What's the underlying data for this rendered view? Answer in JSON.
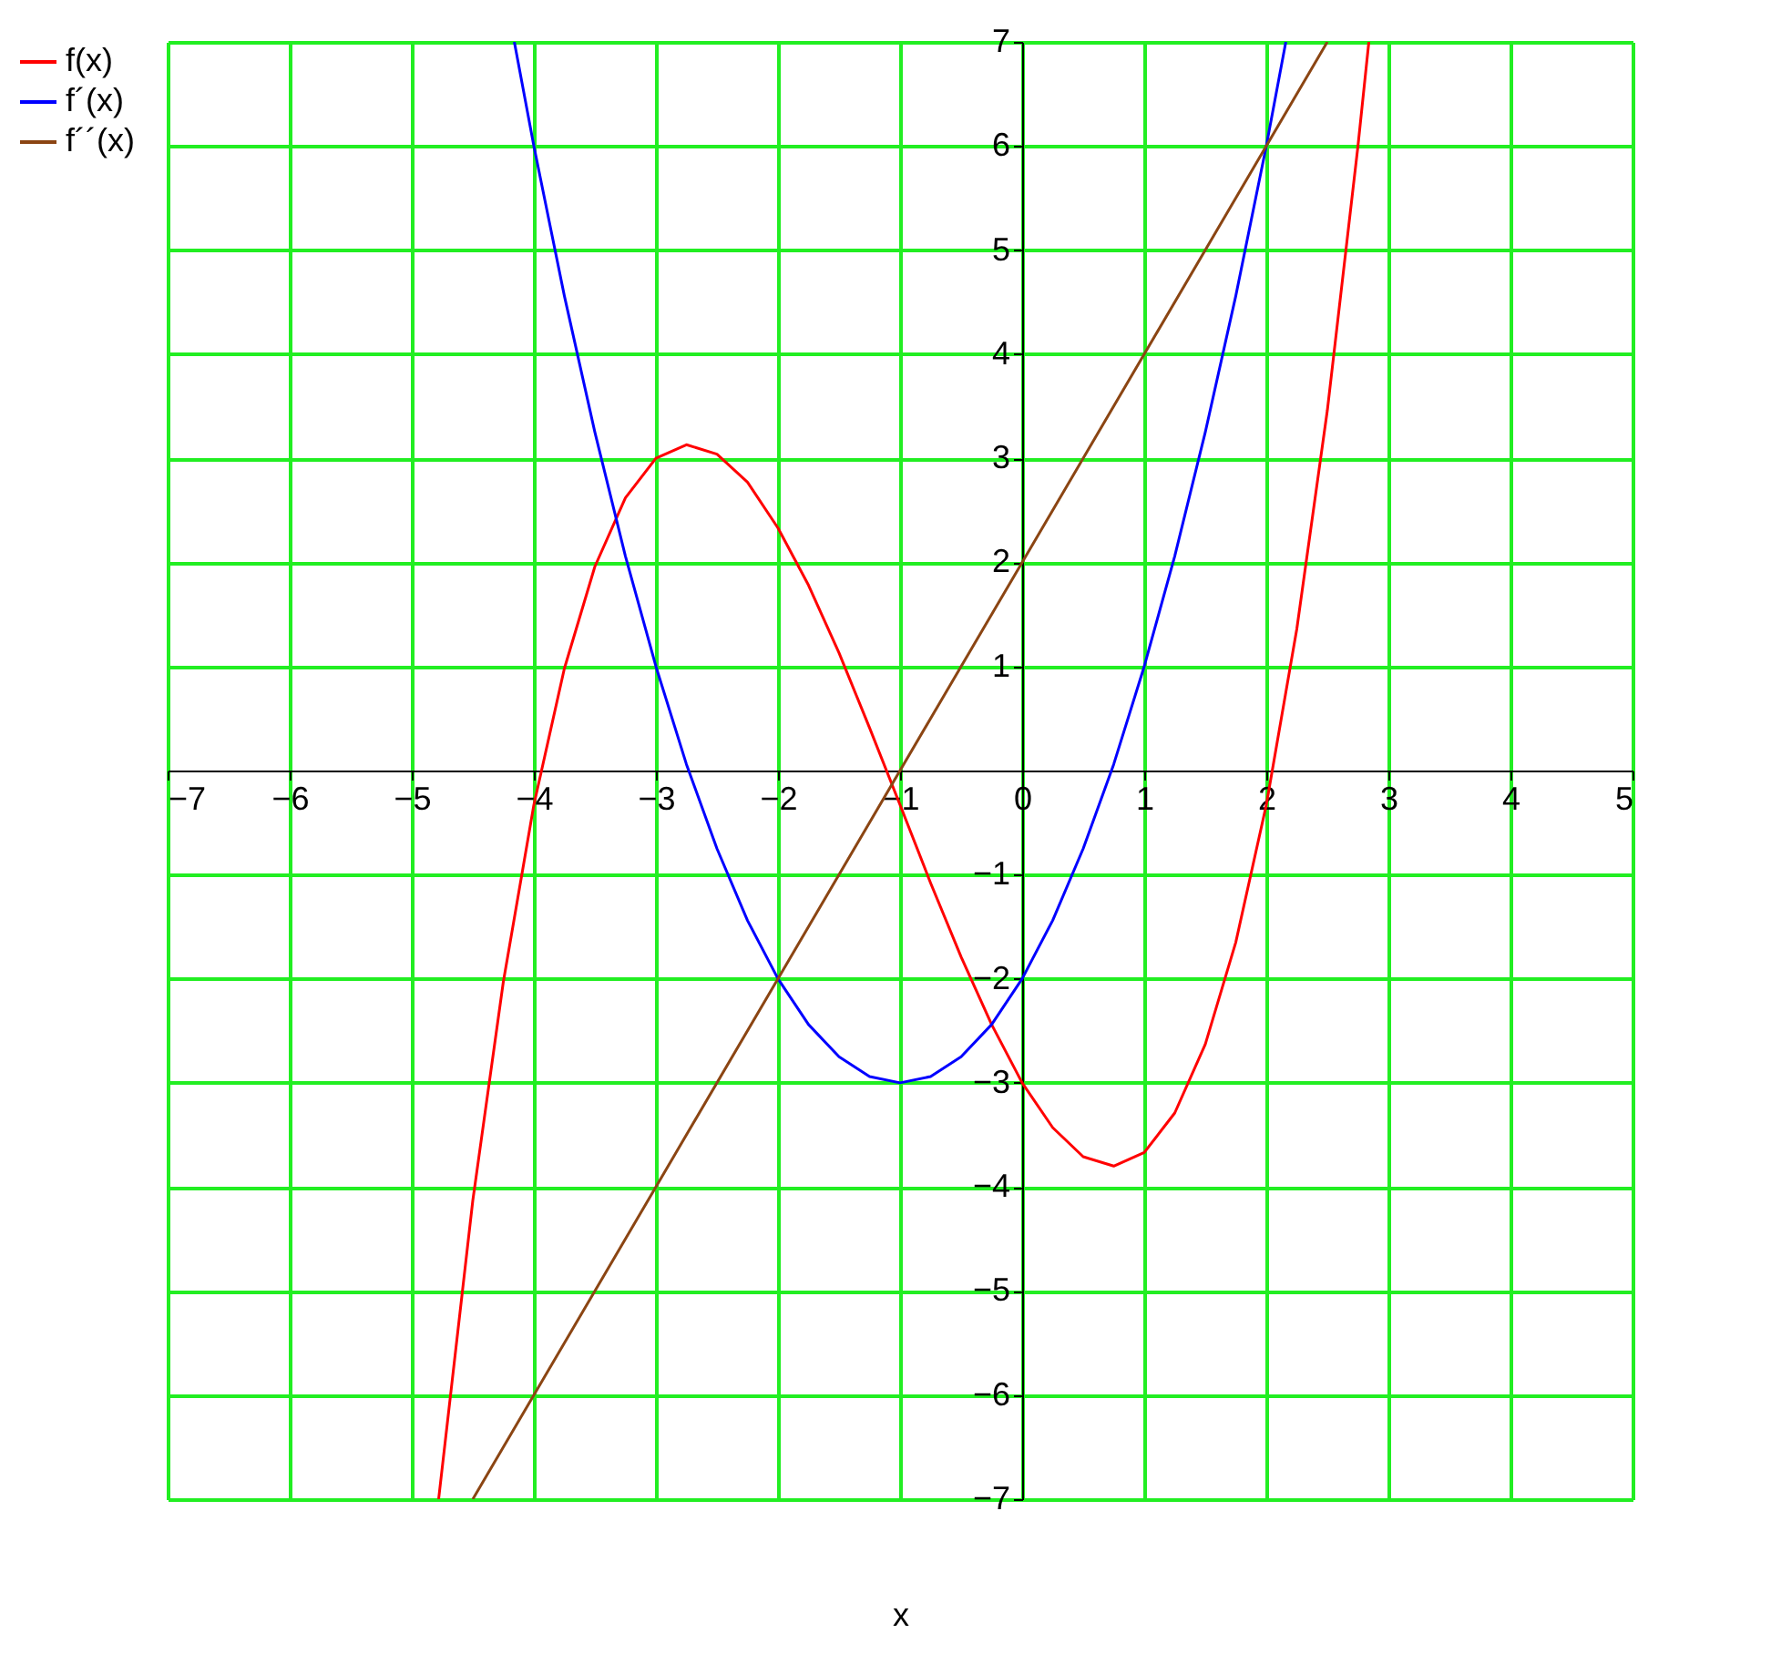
{
  "chart_data": {
    "type": "line",
    "xlabel": "x",
    "xlim": [
      -7,
      5
    ],
    "ylim": [
      -7,
      7
    ],
    "xticks": [
      -7,
      -6,
      -5,
      -4,
      -3,
      -2,
      -1,
      0,
      1,
      2,
      3,
      4,
      5
    ],
    "yticks": [
      -7,
      -6,
      -5,
      -4,
      -3,
      -2,
      -1,
      1,
      2,
      3,
      4,
      5,
      6,
      7
    ],
    "grid": true,
    "legend": "left",
    "series": [
      {
        "name": "f(x)",
        "color": "#ff0000",
        "x": [
          -4.78,
          -4.5,
          -4.25,
          -4,
          -3.75,
          -3.5,
          -3.25,
          -3,
          -2.75,
          -2.5,
          -2.25,
          -2,
          -1.75,
          -1.5,
          -1.25,
          -1,
          -0.75,
          -0.5,
          -0.25,
          0,
          0.25,
          0.5,
          0.75,
          1,
          1.25,
          1.5,
          1.75,
          2,
          2.25,
          2.5,
          2.75,
          2.84
        ],
        "values": [
          -7.0,
          -4.13,
          -2.03,
          -0.33,
          0.98,
          1.96,
          2.62,
          3.0,
          3.13,
          3.04,
          2.77,
          2.33,
          1.78,
          1.13,
          0.41,
          -0.33,
          -1.08,
          -1.79,
          -2.44,
          -3.0,
          -3.43,
          -3.71,
          -3.8,
          -3.67,
          -3.29,
          -2.63,
          -1.65,
          -0.33,
          1.36,
          3.46,
          5.99,
          7.0
        ]
      },
      {
        "name": "f´(x)",
        "color": "#0000ff",
        "x": [
          -4.16,
          -4,
          -3.75,
          -3.5,
          -3.25,
          -3,
          -2.75,
          -2.5,
          -2.25,
          -2,
          -1.75,
          -1.5,
          -1.25,
          -1,
          -0.75,
          -0.5,
          -0.25,
          0,
          0.25,
          0.5,
          0.75,
          1,
          1.25,
          1.5,
          1.75,
          2,
          2.16
        ],
        "values": [
          7.0,
          6.0,
          4.56,
          3.25,
          2.06,
          1.0,
          0.06,
          -0.75,
          -1.44,
          -2.0,
          -2.44,
          -2.75,
          -2.94,
          -3.0,
          -2.94,
          -2.75,
          -2.44,
          -2.0,
          -1.44,
          -0.75,
          0.06,
          1.0,
          2.06,
          3.25,
          4.56,
          6.0,
          7.0
        ]
      },
      {
        "name": "f´´(x)",
        "color": "#8b4513",
        "x": [
          -4.5,
          0,
          2.5
        ],
        "values": [
          -7.0,
          2.0,
          7.0
        ]
      }
    ]
  }
}
